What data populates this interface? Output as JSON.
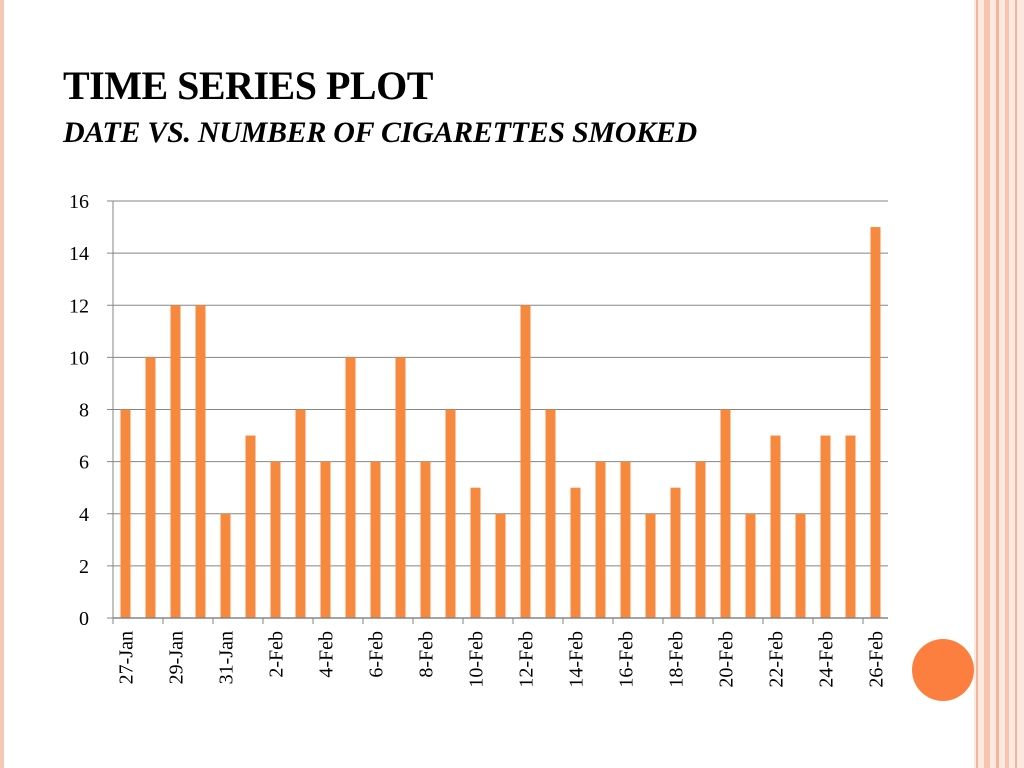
{
  "slide": {
    "title": "TIME SERIES PLOT",
    "subtitle": "DATE VS. NUMBER OF CIGARETTES SMOKED"
  },
  "theme": {
    "bar_color": "#f7893f",
    "accent_color": "#fd7f40",
    "frame_color": "#f6c7b3",
    "gridline_color": "#858585",
    "axis_color": "#868686"
  },
  "chart_data": {
    "type": "bar",
    "title": "",
    "xlabel": "",
    "ylabel": "",
    "categories": [
      "27-Jan",
      "28-Jan",
      "29-Jan",
      "30-Jan",
      "31-Jan",
      "1-Feb",
      "2-Feb",
      "3-Feb",
      "4-Feb",
      "5-Feb",
      "6-Feb",
      "7-Feb",
      "8-Feb",
      "9-Feb",
      "10-Feb",
      "11-Feb",
      "12-Feb",
      "13-Feb",
      "14-Feb",
      "15-Feb",
      "16-Feb",
      "17-Feb",
      "18-Feb",
      "19-Feb",
      "20-Feb",
      "21-Feb",
      "22-Feb",
      "23-Feb",
      "24-Feb",
      "25-Feb",
      "26-Feb"
    ],
    "tick_labels": [
      "27-Jan",
      "29-Jan",
      "31-Jan",
      "2-Feb",
      "4-Feb",
      "6-Feb",
      "8-Feb",
      "10-Feb",
      "12-Feb",
      "14-Feb",
      "16-Feb",
      "18-Feb",
      "20-Feb",
      "22-Feb",
      "24-Feb",
      "26-Feb"
    ],
    "values": [
      8,
      10,
      12,
      12,
      4,
      7,
      6,
      8,
      6,
      10,
      6,
      10,
      6,
      8,
      5,
      4,
      12,
      8,
      5,
      6,
      6,
      4,
      5,
      6,
      8,
      4,
      7,
      4,
      7,
      7,
      15
    ],
    "ylim": [
      0,
      16
    ],
    "yticks": [
      0,
      2,
      4,
      6,
      8,
      10,
      12,
      14,
      16
    ],
    "grid": true,
    "legend": "none"
  }
}
